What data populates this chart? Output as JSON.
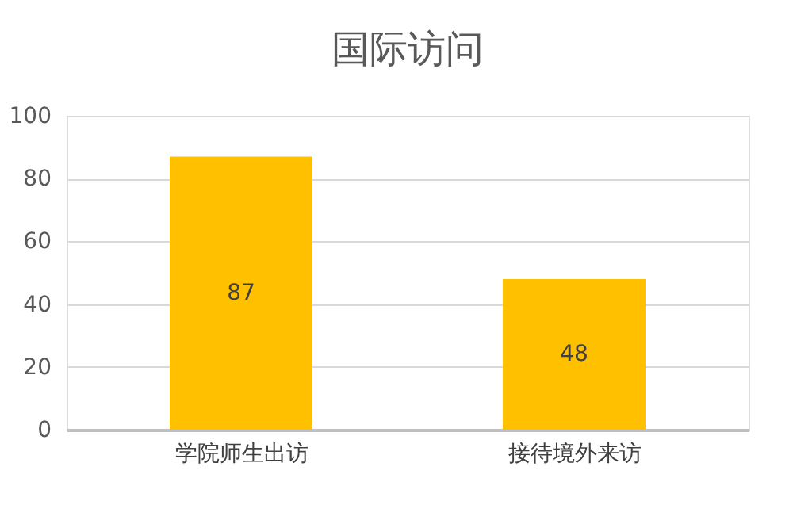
{
  "chart_data": {
    "type": "bar",
    "title": "国际访问",
    "categories": [
      "学院师生出访",
      "接待境外来访"
    ],
    "values": [
      87,
      48
    ],
    "color": "#ffc000",
    "ylim": [
      0,
      100
    ],
    "yticks": [
      0,
      20,
      40,
      60,
      80,
      100
    ],
    "grid": "y",
    "data_labels": true
  }
}
